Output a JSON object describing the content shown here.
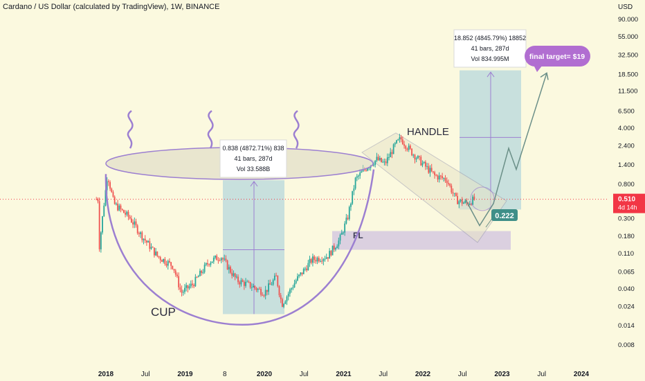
{
  "header": {
    "title": "Cardano / US Dollar (calculated by TradingView), 1W, BINANCE",
    "currency": "USD"
  },
  "price_tag": {
    "price": "0.510",
    "countdown": "4d 14h",
    "color": "#f23645"
  },
  "chart_data": {
    "type": "candlestick",
    "title": "Cardano / US Dollar (calculated by TradingView), 1W, BINANCE",
    "x_ticks": [
      "2018",
      "Jul",
      "2019",
      "8",
      "2020",
      "Jul",
      "2021",
      "Jul",
      "2022",
      "Jul",
      "2023",
      "Jul",
      "2024"
    ],
    "y_ticks": [
      90.0,
      55.0,
      32.5,
      18.5,
      11.5,
      6.5,
      4.0,
      2.4,
      1.4,
      0.8,
      0.3,
      0.18,
      0.11,
      0.065,
      0.04,
      0.024,
      0.014,
      0.008
    ],
    "y_tick_labels": [
      "90.000",
      "55.000",
      "32.500",
      "18.500",
      "11.500",
      "6.500",
      "4.000",
      "2.400",
      "1.400",
      "0.800",
      "0.300",
      "0.180",
      "0.110",
      "0.065",
      "0.040",
      "0.024",
      "0.014",
      "0.008"
    ],
    "y_scale": "log",
    "xlim": [
      "2017-10",
      "2024-03"
    ],
    "ylim": [
      0.006,
      110
    ],
    "current_price": 0.51,
    "colors": {
      "up": "#26a69a",
      "down": "#ef5350",
      "pattern": "#9c7fd1",
      "measure_box": "#b7d7dc",
      "fl_zone": "#cdbfe0",
      "target_line": "#6b8f88",
      "current_target_box": "#3f8f88"
    },
    "candles_approx": [
      {
        "t": "2017-12",
        "close": 0.5
      },
      {
        "t": "2018-01",
        "close": 1.05
      },
      {
        "t": "2018-04",
        "close": 0.3
      },
      {
        "t": "2018-08",
        "close": 0.1
      },
      {
        "t": "2018-12",
        "close": 0.04
      },
      {
        "t": "2019-05",
        "close": 0.085
      },
      {
        "t": "2019-09",
        "close": 0.04
      },
      {
        "t": "2020-03",
        "close": 0.025
      },
      {
        "t": "2020-09",
        "close": 0.1
      },
      {
        "t": "2021-01",
        "close": 0.4
      },
      {
        "t": "2021-05",
        "close": 1.5
      },
      {
        "t": "2021-09",
        "close": 2.9
      },
      {
        "t": "2022-01",
        "close": 1.2
      },
      {
        "t": "2022-06",
        "close": 0.45
      },
      {
        "t": "2022-08",
        "close": 0.51
      }
    ],
    "annotations": {
      "cup_label": "CUP",
      "handle_label": "HANDLE",
      "fl_label": "FL",
      "target_label": "final target= $19",
      "current_box": "0.222",
      "measure1": {
        "line1": "0.838 (4872.71%) 838",
        "line2": "41 bars, 287d",
        "line3": "Vol 33.588B"
      },
      "measure2": {
        "line1": "18.852 (4845.79%) 18852",
        "line2": "41 bars, 287d",
        "line3": "Vol 834.995M"
      }
    }
  }
}
